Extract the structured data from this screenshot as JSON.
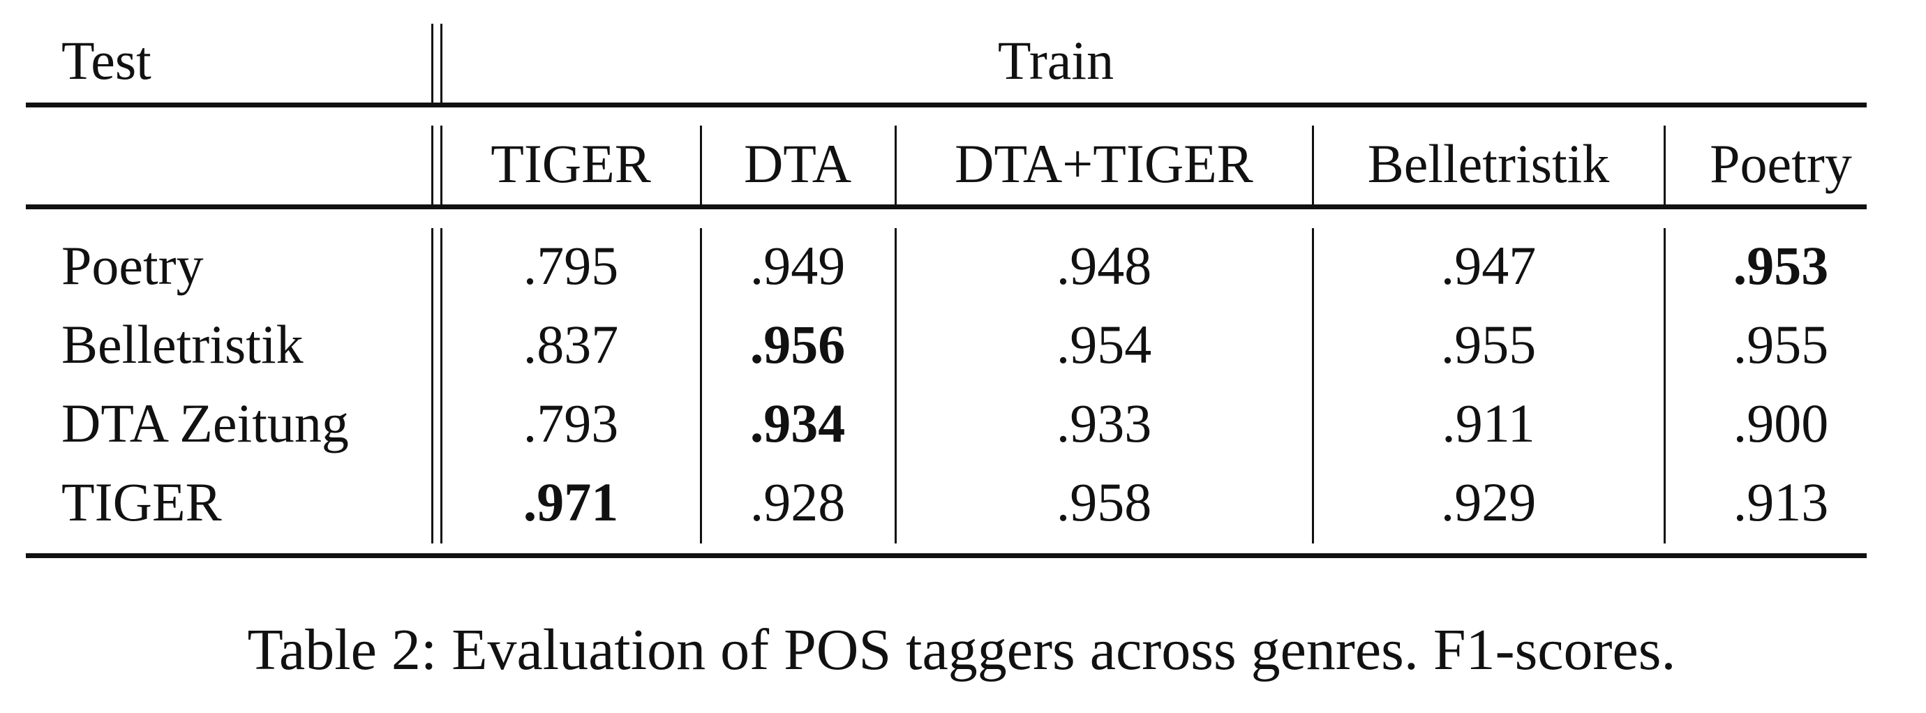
{
  "table": {
    "test_header": "Test",
    "train_header": "Train",
    "columns": [
      "TIGER",
      "DTA",
      "DTA+TIGER",
      "Belletristik",
      "Poetry"
    ],
    "rows": [
      {
        "label": "Poetry",
        "values": [
          ".795",
          ".949",
          ".948",
          ".947",
          ".953"
        ],
        "best": 4
      },
      {
        "label": "Belletristik",
        "values": [
          ".837",
          ".956",
          ".954",
          ".955",
          ".955"
        ],
        "best": 1
      },
      {
        "label": "DTA Zeitung",
        "values": [
          ".793",
          ".934",
          ".933",
          ".911",
          ".900"
        ],
        "best": 1
      },
      {
        "label": "TIGER",
        "values": [
          ".971",
          ".928",
          ".958",
          ".929",
          ".913"
        ],
        "best": 0
      }
    ]
  },
  "caption": "Table 2: Evaluation of POS taggers across genres. F1-scores."
}
